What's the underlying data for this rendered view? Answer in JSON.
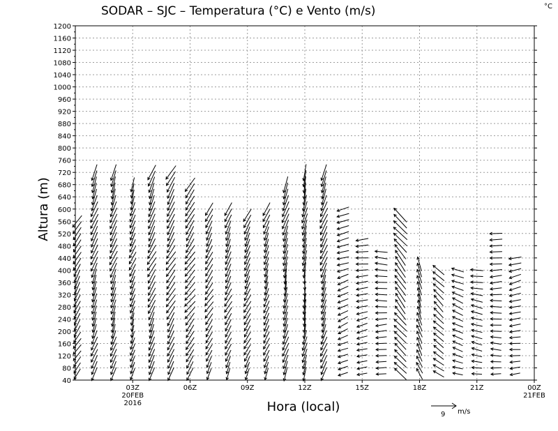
{
  "chart_data": {
    "type": "wind-barb",
    "title": "SODAR – SJC – Temperatura (°C) e Vento (m/s)",
    "corner_label": "°C",
    "xlabel": "Hora (local)",
    "ylabel": "Altura (m)",
    "ylim": [
      40,
      1200
    ],
    "y_ticks": [
      40,
      80,
      120,
      160,
      200,
      240,
      280,
      320,
      360,
      400,
      440,
      480,
      520,
      560,
      600,
      640,
      680,
      720,
      760,
      800,
      840,
      880,
      920,
      960,
      1000,
      1040,
      1080,
      1120,
      1160,
      1200
    ],
    "xlim_hours": [
      0,
      24
    ],
    "x_ticks": [
      {
        "hour": 3,
        "label": "03Z",
        "sub1": "20FEB",
        "sub2": "2016"
      },
      {
        "hour": 6,
        "label": "06Z"
      },
      {
        "hour": 9,
        "label": "09Z"
      },
      {
        "hour": 12,
        "label": "12Z"
      },
      {
        "hour": 15,
        "label": "15Z"
      },
      {
        "hour": 18,
        "label": "18Z"
      },
      {
        "hour": 21,
        "label": "21Z"
      },
      {
        "hour": 24,
        "label": "00Z",
        "sub1": "21FEB"
      }
    ],
    "grid": true,
    "reference_vector": {
      "speed": 9,
      "unit_label": "m/s",
      "value_label": "9"
    },
    "profiles": [
      {
        "hour": 0.1,
        "top": 560,
        "dir": 210,
        "speed": 3
      },
      {
        "hour": 1.0,
        "top": 720,
        "dir": 200,
        "speed": 4
      },
      {
        "hour": 2.0,
        "top": 720,
        "dir": 200,
        "speed": 4
      },
      {
        "hour": 3.0,
        "top": 680,
        "dir": 200,
        "speed": 3
      },
      {
        "hour": 4.0,
        "top": 720,
        "dir": 205,
        "speed": 4
      },
      {
        "hour": 5.0,
        "top": 720,
        "dir": 210,
        "speed": 4
      },
      {
        "hour": 6.0,
        "top": 680,
        "dir": 215,
        "speed": 4
      },
      {
        "hour": 7.0,
        "top": 600,
        "dir": 210,
        "speed": 3
      },
      {
        "hour": 8.0,
        "top": 600,
        "dir": 205,
        "speed": 3
      },
      {
        "hour": 9.0,
        "top": 580,
        "dir": 205,
        "speed": 3
      },
      {
        "hour": 10.0,
        "top": 600,
        "dir": 200,
        "speed": 3
      },
      {
        "hour": 11.0,
        "top": 680,
        "dir": 195,
        "speed": 4
      },
      {
        "hour": 12.0,
        "top": 720,
        "dir": 190,
        "speed": 4
      },
      {
        "hour": 13.0,
        "top": 720,
        "dir": 200,
        "speed": 4
      },
      {
        "hour": 14.0,
        "top": 600,
        "dir": 250,
        "speed": 2
      },
      {
        "hour": 15.0,
        "top": 500,
        "dir": 260,
        "speed": 2
      },
      {
        "hour": 16.0,
        "top": 460,
        "dir": 270,
        "speed": 2
      },
      {
        "hour": 17.0,
        "top": 580,
        "dir": 320,
        "speed": 5
      },
      {
        "hour": 18.0,
        "top": 420,
        "dir": 340,
        "speed": 3
      },
      {
        "hour": 19.0,
        "top": 400,
        "dir": 310,
        "speed": 3
      },
      {
        "hour": 20.0,
        "top": 400,
        "dir": 290,
        "speed": 2
      },
      {
        "hour": 21.0,
        "top": 400,
        "dir": 280,
        "speed": 2
      },
      {
        "hour": 22.0,
        "top": 520,
        "dir": 270,
        "speed": 2
      },
      {
        "hour": 23.0,
        "top": 440,
        "dir": 260,
        "speed": 2
      }
    ]
  }
}
